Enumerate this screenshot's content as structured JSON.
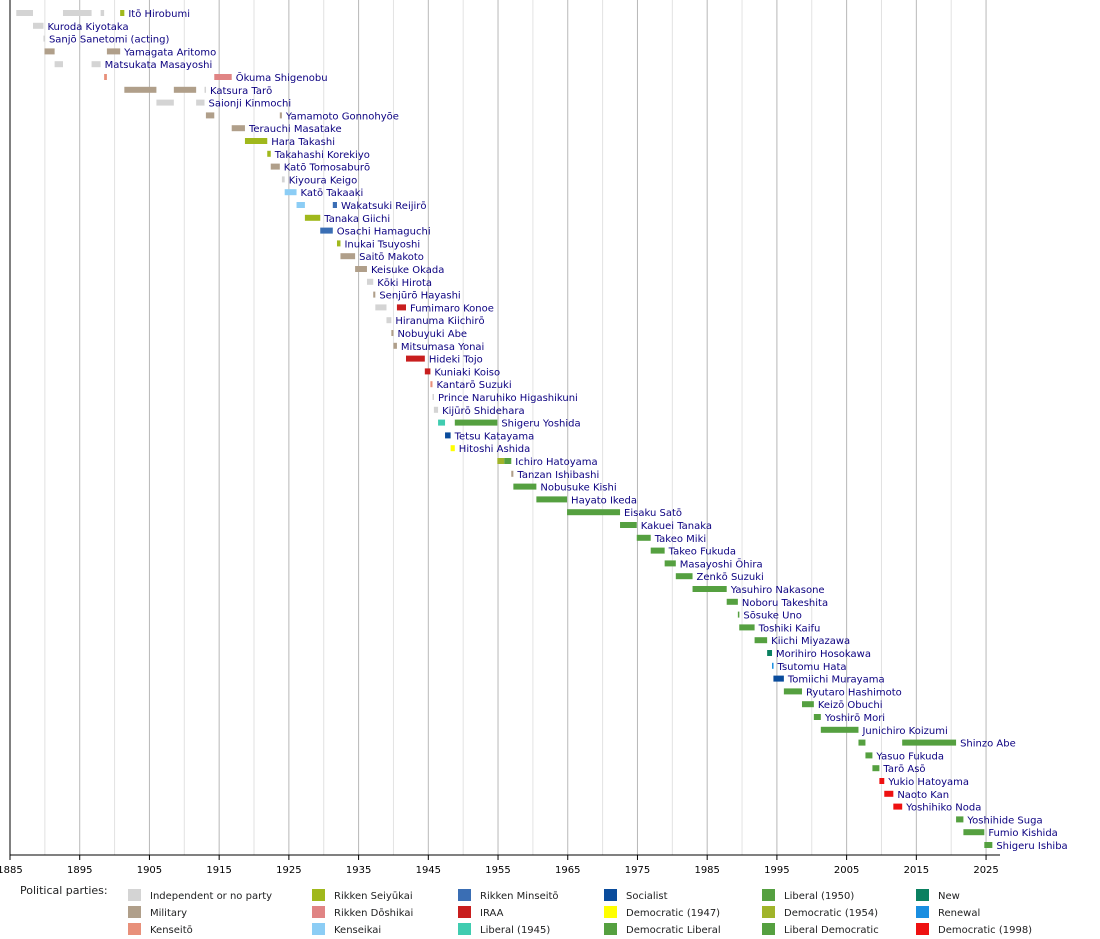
{
  "chart_data": {
    "type": "timeline",
    "xlim": [
      1885,
      2027
    ],
    "xticks": [
      1885,
      1895,
      1905,
      1915,
      1925,
      1935,
      1945,
      1955,
      1965,
      1975,
      1985,
      1995,
      2005,
      2015,
      2025
    ],
    "xgrid": [
      1890,
      1900,
      1910,
      1920,
      1930,
      1940,
      1950,
      1960,
      1970,
      1980,
      1990,
      2000,
      2010,
      2020
    ],
    "legend_title": "Political parties:",
    "parties": [
      {
        "name": "Independent or no party",
        "color": "#d4d4d4"
      },
      {
        "name": "Military",
        "color": "#b09f8a"
      },
      {
        "name": "Kenseitō",
        "color": "#e8907a"
      },
      {
        "name": "Rikken Seiyūkai",
        "color": "#a0b81c"
      },
      {
        "name": "Rikken Dōshikai",
        "color": "#e08484"
      },
      {
        "name": "Kenseikai",
        "color": "#8ccdf5"
      },
      {
        "name": "Rikken Minseitō",
        "color": "#3a6eb4"
      },
      {
        "name": "IRAA",
        "color": "#c81e1e"
      },
      {
        "name": "Liberal (1945)",
        "color": "#40ccb0"
      },
      {
        "name": "Socialist",
        "color": "#0a4c9c"
      },
      {
        "name": "Democratic (1947)",
        "color": "#ffff00"
      },
      {
        "name": "Democratic Liberal",
        "color": "#55a040"
      },
      {
        "name": "Liberal (1950)",
        "color": "#55a040"
      },
      {
        "name": "Democratic (1954)",
        "color": "#a0b42a"
      },
      {
        "name": "Liberal Democratic",
        "color": "#55a040"
      },
      {
        "name": "New",
        "color": "#0a8060"
      },
      {
        "name": "Renewal",
        "color": "#1a8ee0"
      },
      {
        "name": "Democratic (1998)",
        "color": "#ee1111"
      }
    ],
    "rows": [
      {
        "name": "Itō Hirobumi",
        "terms": [
          {
            "start": 1885.9,
            "end": 1888.3,
            "party": 0
          },
          {
            "start": 1892.6,
            "end": 1896.7,
            "party": 0
          },
          {
            "start": 1898.0,
            "end": 1898.5,
            "party": 0
          },
          {
            "start": 1900.8,
            "end": 1901.4,
            "party": 3
          }
        ]
      },
      {
        "name": "Kuroda Kiyotaka",
        "terms": [
          {
            "start": 1888.3,
            "end": 1889.8,
            "party": 0
          }
        ]
      },
      {
        "name": "Sanjō Sanetomi (acting)",
        "terms": [
          {
            "start": 1889.8,
            "end": 1889.95,
            "party": 0
          }
        ]
      },
      {
        "name": "Yamagata Aritomo",
        "terms": [
          {
            "start": 1889.95,
            "end": 1891.4,
            "party": 1
          },
          {
            "start": 1898.9,
            "end": 1900.8,
            "party": 1
          }
        ]
      },
      {
        "name": "Matsukata Masayoshi",
        "terms": [
          {
            "start": 1891.4,
            "end": 1892.6,
            "party": 0
          },
          {
            "start": 1896.7,
            "end": 1898.0,
            "party": 0
          }
        ]
      },
      {
        "name": "Ōkuma Shigenobu",
        "terms": [
          {
            "start": 1898.5,
            "end": 1898.9,
            "party": 2
          },
          {
            "start": 1914.3,
            "end": 1916.8,
            "party": 4
          }
        ]
      },
      {
        "name": "Katsura Tarō",
        "terms": [
          {
            "start": 1901.4,
            "end": 1906.0,
            "party": 1
          },
          {
            "start": 1908.5,
            "end": 1911.7,
            "party": 1
          },
          {
            "start": 1912.9,
            "end": 1913.1,
            "party": 0
          }
        ]
      },
      {
        "name": "Saionji Kinmochi",
        "terms": [
          {
            "start": 1906.0,
            "end": 1908.5,
            "party": 0
          },
          {
            "start": 1911.7,
            "end": 1912.9,
            "party": 0
          }
        ]
      },
      {
        "name": "Yamamoto Gonnohyōe",
        "terms": [
          {
            "start": 1913.1,
            "end": 1914.3,
            "party": 1
          },
          {
            "start": 1923.7,
            "end": 1924.0,
            "party": 1
          }
        ]
      },
      {
        "name": "Terauchi Masatake",
        "terms": [
          {
            "start": 1916.8,
            "end": 1918.7,
            "party": 1
          }
        ]
      },
      {
        "name": "Hara Takashi",
        "terms": [
          {
            "start": 1918.7,
            "end": 1921.9,
            "party": 3
          }
        ]
      },
      {
        "name": "Takahashi Korekiyo",
        "terms": [
          {
            "start": 1921.9,
            "end": 1922.4,
            "party": 3
          }
        ]
      },
      {
        "name": "Katō Tomosaburō",
        "terms": [
          {
            "start": 1922.4,
            "end": 1923.7,
            "party": 1
          }
        ]
      },
      {
        "name": "Kiyoura Keigo",
        "terms": [
          {
            "start": 1924.0,
            "end": 1924.4,
            "party": 0
          }
        ]
      },
      {
        "name": "Katō Takaaki",
        "terms": [
          {
            "start": 1924.4,
            "end": 1926.1,
            "party": 5
          }
        ]
      },
      {
        "name": "Wakatsuki Reijirō",
        "terms": [
          {
            "start": 1926.1,
            "end": 1927.3,
            "party": 5
          },
          {
            "start": 1931.3,
            "end": 1931.9,
            "party": 6
          }
        ]
      },
      {
        "name": "Tanaka Giichi",
        "terms": [
          {
            "start": 1927.3,
            "end": 1929.5,
            "party": 3
          }
        ]
      },
      {
        "name": "Osachi Hamaguchi",
        "terms": [
          {
            "start": 1929.5,
            "end": 1931.3,
            "party": 6
          }
        ]
      },
      {
        "name": "Inukai Tsuyoshi",
        "terms": [
          {
            "start": 1931.9,
            "end": 1932.4,
            "party": 3
          }
        ]
      },
      {
        "name": "Saitō Makoto",
        "terms": [
          {
            "start": 1932.4,
            "end": 1934.5,
            "party": 1
          }
        ]
      },
      {
        "name": "Keisuke Okada",
        "terms": [
          {
            "start": 1934.5,
            "end": 1936.2,
            "party": 1
          }
        ]
      },
      {
        "name": "Kōki Hirota",
        "terms": [
          {
            "start": 1936.2,
            "end": 1937.1,
            "party": 0
          }
        ]
      },
      {
        "name": "Senjūrō Hayashi",
        "terms": [
          {
            "start": 1937.1,
            "end": 1937.4,
            "party": 1
          }
        ]
      },
      {
        "name": "Fumimaro Konoe",
        "terms": [
          {
            "start": 1937.4,
            "end": 1939.0,
            "party": 0
          },
          {
            "start": 1940.5,
            "end": 1941.8,
            "party": 7
          }
        ]
      },
      {
        "name": "Hiranuma Kiichirō",
        "terms": [
          {
            "start": 1939.0,
            "end": 1939.7,
            "party": 0
          }
        ]
      },
      {
        "name": "Nobuyuki Abe",
        "terms": [
          {
            "start": 1939.7,
            "end": 1940.0,
            "party": 1
          }
        ]
      },
      {
        "name": "Mitsumasa Yonai",
        "terms": [
          {
            "start": 1940.0,
            "end": 1940.5,
            "party": 1
          }
        ]
      },
      {
        "name": "Hideki Tojo",
        "terms": [
          {
            "start": 1941.8,
            "end": 1944.5,
            "party": 7
          }
        ]
      },
      {
        "name": "Kuniaki Koiso",
        "terms": [
          {
            "start": 1944.5,
            "end": 1945.3,
            "party": 7
          }
        ]
      },
      {
        "name": "Kantarō Suzuki",
        "terms": [
          {
            "start": 1945.3,
            "end": 1945.6,
            "party": 2
          }
        ]
      },
      {
        "name": "Prince Naruhiko Higashikuni",
        "terms": [
          {
            "start": 1945.6,
            "end": 1945.8,
            "party": 0
          }
        ]
      },
      {
        "name": "Kijūrō Shidehara",
        "terms": [
          {
            "start": 1945.8,
            "end": 1946.4,
            "party": 0
          }
        ]
      },
      {
        "name": "Shigeru Yoshida",
        "terms": [
          {
            "start": 1946.4,
            "end": 1947.4,
            "party": 8
          },
          {
            "start": 1948.8,
            "end": 1954.9,
            "party": 12
          }
        ]
      },
      {
        "name": "Tetsu Katayama",
        "terms": [
          {
            "start": 1947.4,
            "end": 1948.2,
            "party": 9
          }
        ]
      },
      {
        "name": "Hitoshi Ashida",
        "terms": [
          {
            "start": 1948.2,
            "end": 1948.8,
            "party": 10
          }
        ]
      },
      {
        "name": "Ichiro Hatoyama",
        "terms": [
          {
            "start": 1954.9,
            "end": 1955.9,
            "party": 13
          },
          {
            "start": 1955.9,
            "end": 1956.9,
            "party": 14
          }
        ]
      },
      {
        "name": "Tanzan Ishibashi",
        "terms": [
          {
            "start": 1956.9,
            "end": 1957.2,
            "party": 1
          }
        ]
      },
      {
        "name": "Nobusuke Kishi",
        "terms": [
          {
            "start": 1957.2,
            "end": 1960.5,
            "party": 14
          }
        ]
      },
      {
        "name": "Hayato Ikeda",
        "terms": [
          {
            "start": 1960.5,
            "end": 1964.9,
            "party": 14
          }
        ]
      },
      {
        "name": "Eisaku Satō",
        "terms": [
          {
            "start": 1964.9,
            "end": 1972.5,
            "party": 14
          }
        ]
      },
      {
        "name": "Kakuei Tanaka",
        "terms": [
          {
            "start": 1972.5,
            "end": 1974.9,
            "party": 14
          }
        ]
      },
      {
        "name": "Takeo Miki",
        "terms": [
          {
            "start": 1974.9,
            "end": 1976.9,
            "party": 14
          }
        ]
      },
      {
        "name": "Takeo Fukuda",
        "terms": [
          {
            "start": 1976.9,
            "end": 1978.9,
            "party": 14
          }
        ]
      },
      {
        "name": "Masayoshi Ōhira",
        "terms": [
          {
            "start": 1978.9,
            "end": 1980.5,
            "party": 14
          }
        ]
      },
      {
        "name": "Zenkō Suzuki",
        "terms": [
          {
            "start": 1980.5,
            "end": 1982.9,
            "party": 14
          }
        ]
      },
      {
        "name": "Yasuhiro Nakasone",
        "terms": [
          {
            "start": 1982.9,
            "end": 1987.8,
            "party": 14
          }
        ]
      },
      {
        "name": "Noboru Takeshita",
        "terms": [
          {
            "start": 1987.8,
            "end": 1989.4,
            "party": 14
          }
        ]
      },
      {
        "name": "Sōsuke Uno",
        "terms": [
          {
            "start": 1989.4,
            "end": 1989.6,
            "party": 14
          }
        ]
      },
      {
        "name": "Toshiki Kaifu",
        "terms": [
          {
            "start": 1989.6,
            "end": 1991.8,
            "party": 14
          }
        ]
      },
      {
        "name": "Kiichi Miyazawa",
        "terms": [
          {
            "start": 1991.8,
            "end": 1993.6,
            "party": 14
          }
        ]
      },
      {
        "name": "Morihiro Hosokawa",
        "terms": [
          {
            "start": 1993.6,
            "end": 1994.3,
            "party": 15
          }
        ]
      },
      {
        "name": "Tsutomu Hata",
        "terms": [
          {
            "start": 1994.3,
            "end": 1994.5,
            "party": 16
          }
        ]
      },
      {
        "name": "Tomiichi Murayama",
        "terms": [
          {
            "start": 1994.5,
            "end": 1996.0,
            "party": 9
          }
        ]
      },
      {
        "name": "Ryutaro Hashimoto",
        "terms": [
          {
            "start": 1996.0,
            "end": 1998.6,
            "party": 14
          }
        ]
      },
      {
        "name": "Keizō Obuchi",
        "terms": [
          {
            "start": 1998.6,
            "end": 2000.3,
            "party": 14
          }
        ]
      },
      {
        "name": "Yoshirō Mori",
        "terms": [
          {
            "start": 2000.3,
            "end": 2001.3,
            "party": 14
          }
        ]
      },
      {
        "name": "Junichiro Koizumi",
        "terms": [
          {
            "start": 2001.3,
            "end": 2006.7,
            "party": 14
          }
        ]
      },
      {
        "name": "Shinzo Abe",
        "terms": [
          {
            "start": 2006.7,
            "end": 2007.7,
            "party": 14
          },
          {
            "start": 2012.97,
            "end": 2020.7,
            "party": 14
          }
        ]
      },
      {
        "name": "Yasuo Fukuda",
        "terms": [
          {
            "start": 2007.7,
            "end": 2008.7,
            "party": 14
          }
        ]
      },
      {
        "name": "Tarō Asō",
        "terms": [
          {
            "start": 2008.7,
            "end": 2009.7,
            "party": 14
          }
        ]
      },
      {
        "name": "Yukio Hatoyama",
        "terms": [
          {
            "start": 2009.7,
            "end": 2010.4,
            "party": 17
          }
        ]
      },
      {
        "name": "Naoto Kan",
        "terms": [
          {
            "start": 2010.4,
            "end": 2011.7,
            "party": 17
          }
        ]
      },
      {
        "name": "Yoshihiko Noda",
        "terms": [
          {
            "start": 2011.7,
            "end": 2012.97,
            "party": 17
          }
        ]
      },
      {
        "name": "Yoshihide Suga",
        "terms": [
          {
            "start": 2020.7,
            "end": 2021.75,
            "party": 14
          }
        ]
      },
      {
        "name": "Fumio Kishida",
        "terms": [
          {
            "start": 2021.75,
            "end": 2024.75,
            "party": 14
          }
        ]
      },
      {
        "name": "Shigeru Ishiba",
        "terms": [
          {
            "start": 2024.75,
            "end": 2025.9,
            "party": 14
          }
        ]
      }
    ]
  }
}
